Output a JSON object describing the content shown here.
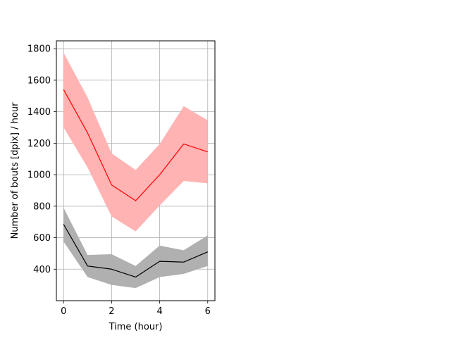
{
  "chart_data": {
    "type": "line",
    "xlabel": "Time (hour)",
    "ylabel": "Number of bouts [dpix]  / hour",
    "xlim": [
      -0.3,
      6.3
    ],
    "ylim": [
      200,
      1850
    ],
    "x_ticks": [
      0,
      2,
      4,
      6
    ],
    "y_ticks": [
      400,
      600,
      800,
      1000,
      1200,
      1400,
      1600,
      1800
    ],
    "grid": true,
    "legend": "none",
    "x": [
      0,
      1,
      2,
      3,
      4,
      5,
      6
    ],
    "series": [
      {
        "line_color": "#ff0000",
        "band_color": "#ffb3b3",
        "values": [
          1540,
          1265,
          935,
          835,
          1000,
          1195,
          1145
        ],
        "band_upper": [
          1775,
          1490,
          1135,
          1030,
          1195,
          1435,
          1345
        ],
        "band_lower": [
          1300,
          1045,
          735,
          640,
          805,
          960,
          945
        ]
      },
      {
        "line_color": "#000000",
        "band_color": "#b0b0b0",
        "values": [
          685,
          420,
          400,
          350,
          450,
          445,
          510
        ],
        "band_upper": [
          790,
          490,
          495,
          420,
          550,
          520,
          615
        ],
        "band_lower": [
          575,
          350,
          300,
          280,
          350,
          370,
          420
        ]
      }
    ]
  }
}
